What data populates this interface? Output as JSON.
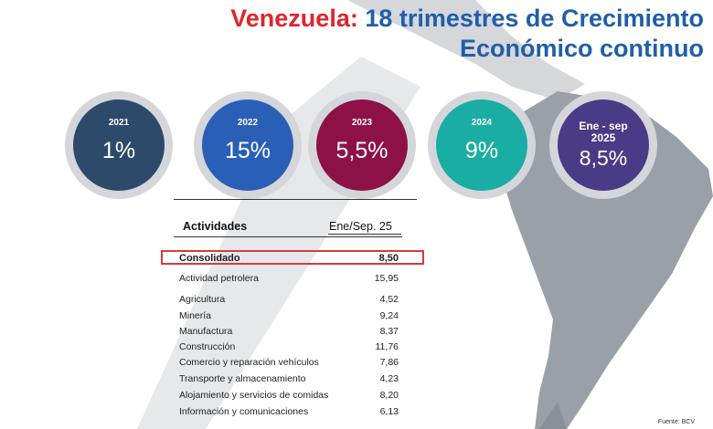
{
  "title": {
    "country": "Venezuela:",
    "line1_rest": " 18 trimestres de Crecimiento",
    "line2": "Económico continuo"
  },
  "colors": {
    "title_red": "#e0242b",
    "title_blue": "#1f5fa8",
    "highlight_border": "#d83a3a"
  },
  "circles": [
    {
      "year": "2021",
      "value": "1%",
      "color": "#2d4a6a"
    },
    {
      "year": "2022",
      "value": "15%",
      "color": "#2a5fb8"
    },
    {
      "year": "2023",
      "value": "5,5%",
      "color": "#8d1146"
    },
    {
      "year": "2024",
      "value": "9%",
      "color": "#1aada4"
    },
    {
      "year": "Ene - sep 2025",
      "value": "8,5%",
      "color": "#4b3a86"
    }
  ],
  "table": {
    "header_label": "Actividades",
    "header_value": "Ene/Sep. 25",
    "rows": [
      {
        "label": "Consolidado",
        "value": "8,50"
      },
      {
        "label": "Actividad petrolera",
        "value": "15,95"
      },
      {
        "label": "Agricultura",
        "value": "4,52"
      },
      {
        "label": "Minería",
        "value": "9,24"
      },
      {
        "label": "Manufactura",
        "value": "8,37"
      },
      {
        "label": "Construcción",
        "value": "11,76"
      },
      {
        "label": "Comercio y reparación vehículos",
        "value": "7,86"
      },
      {
        "label": "Transporte y almacenamiento",
        "value": "4,23"
      },
      {
        "label": "Alojamiento y servicios de comidas",
        "value": "8,20"
      },
      {
        "label": "Información y comunicaciones",
        "value": "6,13"
      }
    ]
  },
  "source": "Fuente: BCV"
}
